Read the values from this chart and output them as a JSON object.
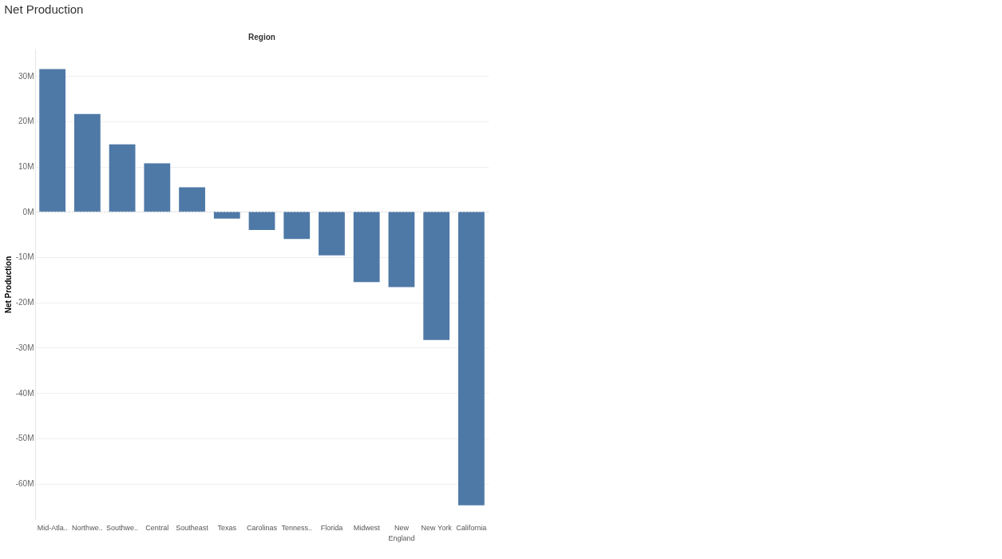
{
  "chart_data": {
    "type": "bar",
    "title": "Net Production",
    "xlabel": "Region",
    "ylabel": "Net Production",
    "categories": [
      "Mid-Atla..",
      "Northwe..",
      "Southwe..",
      "Central",
      "Southeast",
      "Texas",
      "Carolinas",
      "Tenness..",
      "Florida",
      "Midwest",
      "New England",
      "New York",
      "California"
    ],
    "values": [
      31.5,
      21.6,
      14.9,
      10.7,
      5.4,
      -1.5,
      -4.0,
      -6.0,
      -9.6,
      -15.5,
      -16.6,
      -28.3,
      -64.8
    ],
    "color": "#4e79a7",
    "ylim": [
      -68,
      36
    ],
    "yticks": [
      {
        "value": -60,
        "label": "-60M"
      },
      {
        "value": -50,
        "label": "-50M"
      },
      {
        "value": -40,
        "label": "-40M"
      },
      {
        "value": -30,
        "label": "-30M"
      },
      {
        "value": -20,
        "label": "-20M"
      },
      {
        "value": -10,
        "label": "-10M"
      },
      {
        "value": 0,
        "label": "0M"
      },
      {
        "value": 10,
        "label": "10M"
      },
      {
        "value": 20,
        "label": "20M"
      },
      {
        "value": 30,
        "label": "30M"
      }
    ],
    "grid": "y",
    "ref_lines": [
      {
        "axis": "y",
        "value": 0,
        "color": "#dddddd",
        "line_style": "dotted"
      }
    ]
  }
}
